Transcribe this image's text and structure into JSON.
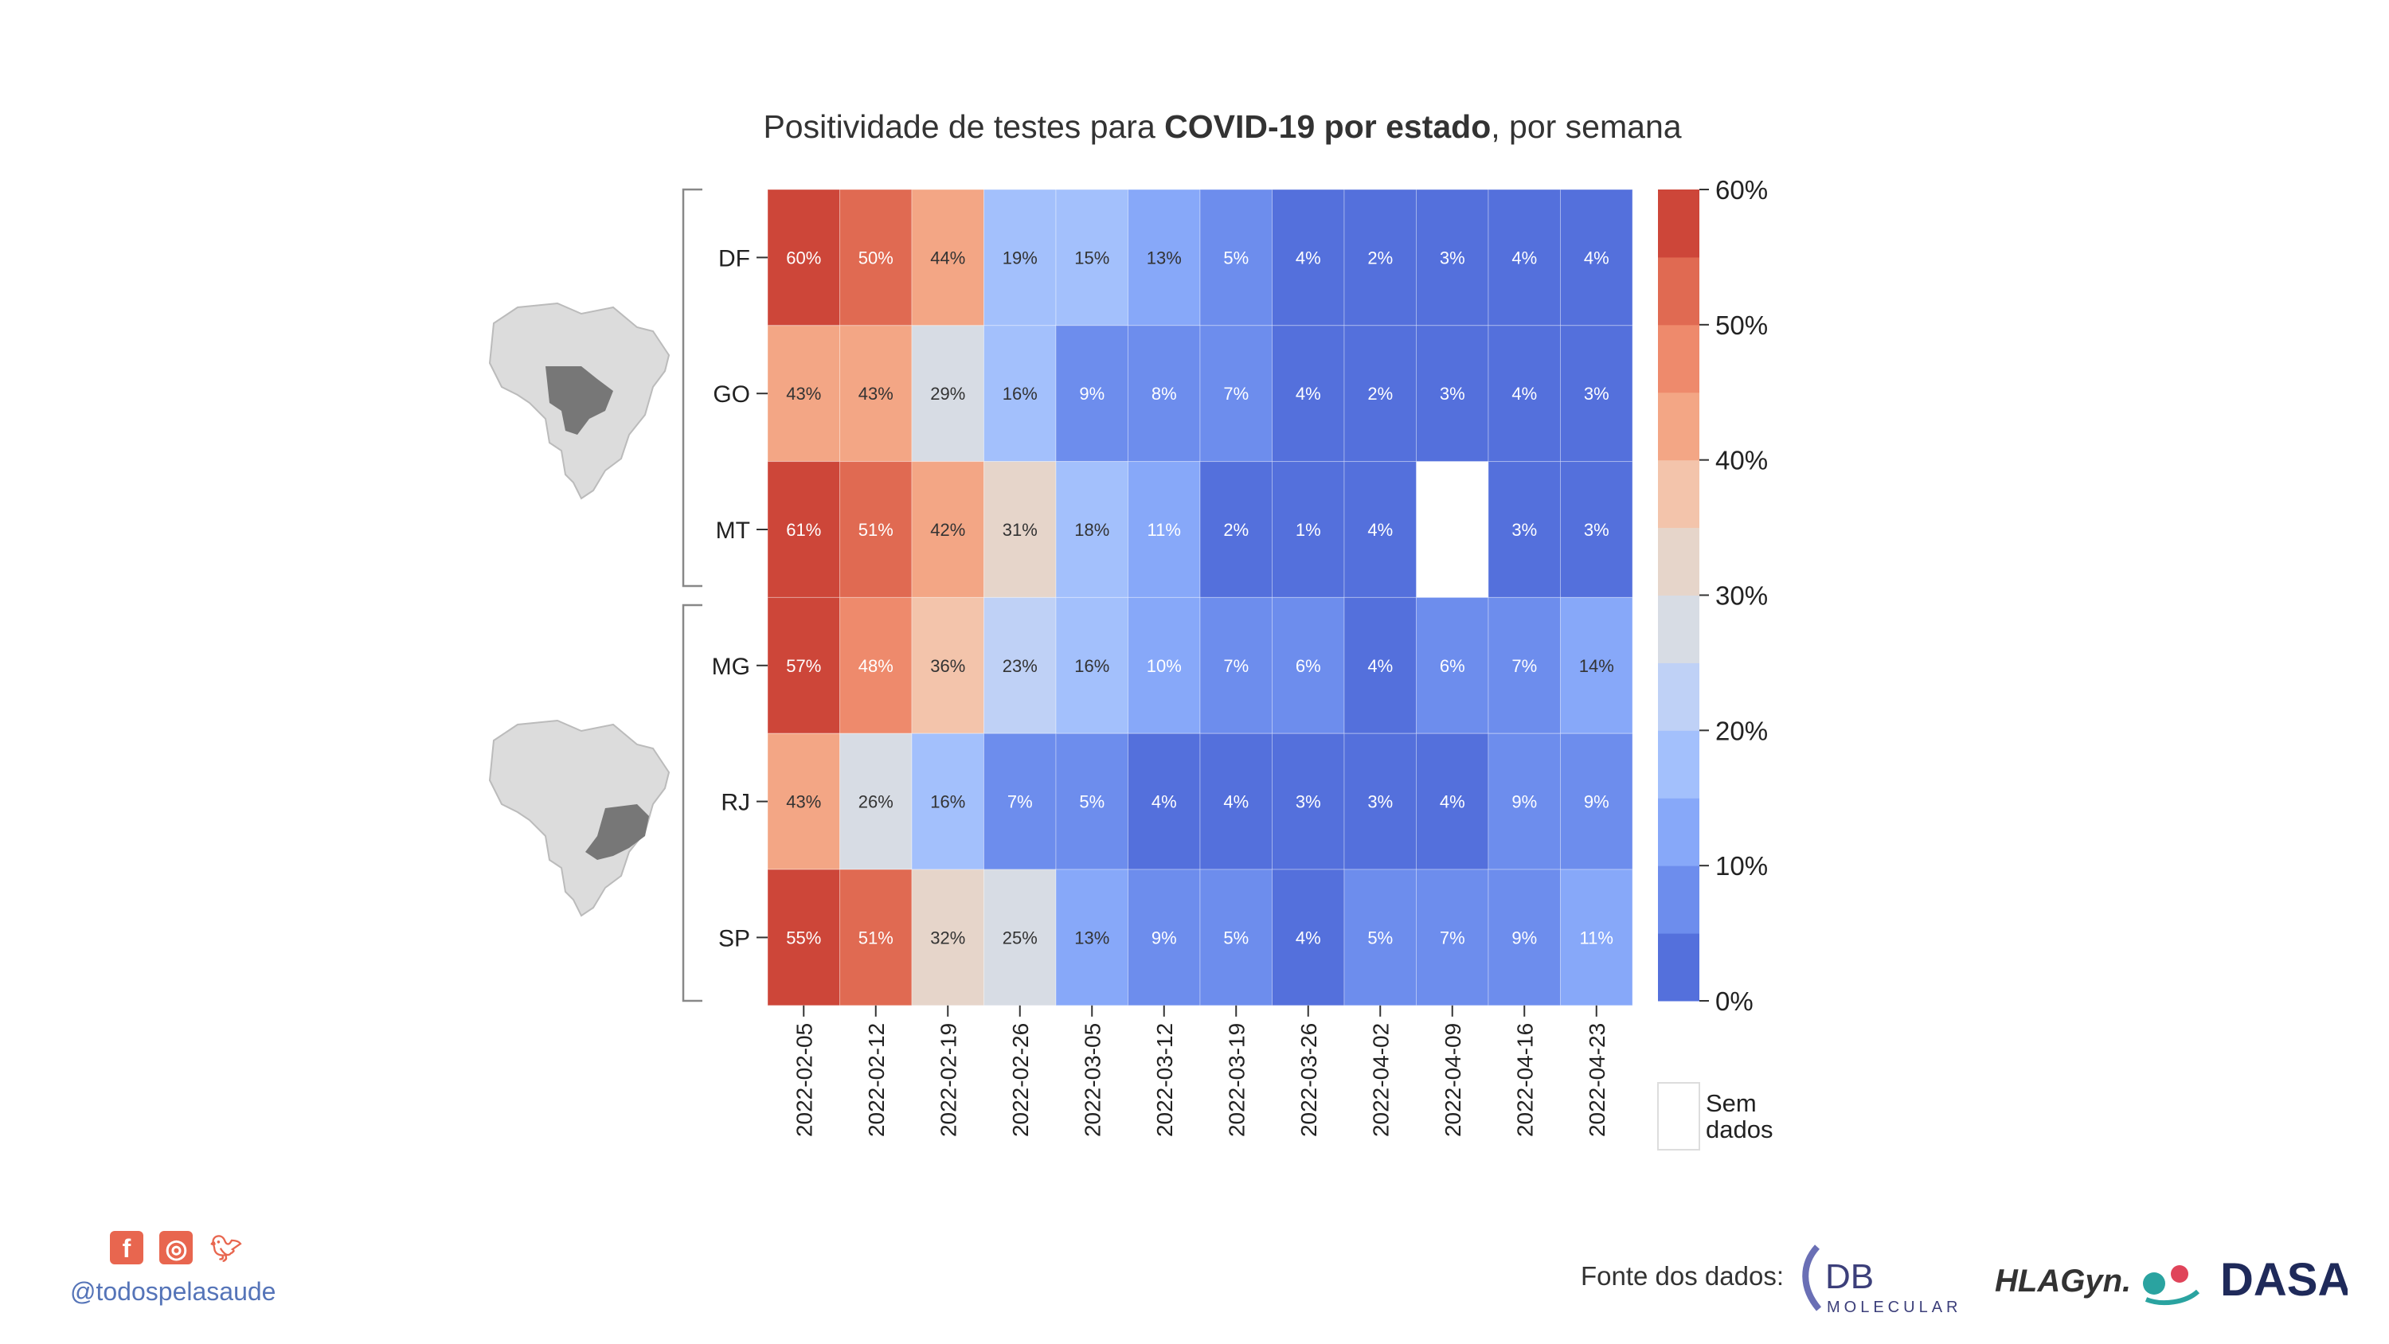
{
  "title_prefix": "Positividade de testes para ",
  "title_bold": "COVID-19 por estado",
  "title_suffix": ", por semana",
  "chart_data": {
    "type": "heatmap",
    "x": [
      "2022-02-05",
      "2022-02-12",
      "2022-02-19",
      "2022-02-26",
      "2022-03-05",
      "2022-03-12",
      "2022-03-19",
      "2022-03-26",
      "2022-04-02",
      "2022-04-09",
      "2022-04-16",
      "2022-04-23"
    ],
    "y": [
      "DF",
      "GO",
      "MT",
      "MG",
      "RJ",
      "SP"
    ],
    "values": [
      [
        60,
        50,
        44,
        19,
        15,
        13,
        5,
        4,
        2,
        3,
        4,
        4
      ],
      [
        43,
        43,
        29,
        16,
        9,
        8,
        7,
        4,
        2,
        3,
        4,
        3
      ],
      [
        61,
        51,
        42,
        31,
        18,
        11,
        2,
        1,
        4,
        null,
        3,
        3
      ],
      [
        57,
        48,
        36,
        23,
        16,
        10,
        7,
        6,
        4,
        6,
        7,
        14
      ],
      [
        43,
        26,
        16,
        7,
        5,
        4,
        4,
        3,
        3,
        4,
        9,
        9
      ],
      [
        55,
        51,
        32,
        25,
        13,
        9,
        5,
        4,
        5,
        7,
        9,
        11
      ]
    ],
    "value_suffix": "%",
    "groups": [
      [
        "DF",
        "GO",
        "MT"
      ],
      [
        "MG",
        "RJ",
        "SP"
      ]
    ],
    "colorbar": {
      "ticks": [
        "60%",
        "50%",
        "40%",
        "30%",
        "20%",
        "10%",
        "0%"
      ],
      "range": [
        0,
        60
      ],
      "colors": [
        "#5470dc",
        "#6d8ded",
        "#87a8f9",
        "#a3c0fc",
        "#bfd1f6",
        "#d7dce4",
        "#e6d5ca",
        "#f3c4ab",
        "#f3a685",
        "#ee8a6c",
        "#e06a52",
        "#cd4639"
      ]
    },
    "missing_label": "Sem dados"
  },
  "footer": {
    "handle": "@todospelasaude",
    "source_label": "Fonte dos dados:",
    "logos": [
      "DB",
      "MOLECULAR",
      "HLAGyn.",
      "DASA"
    ]
  }
}
